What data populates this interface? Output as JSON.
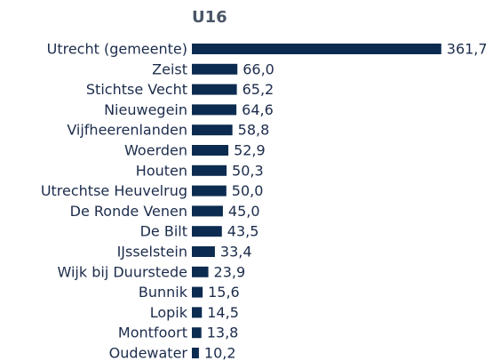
{
  "chart_data": {
    "type": "bar",
    "orientation": "horizontal",
    "title": "U16",
    "categories": [
      "Utrecht (gemeente)",
      "Zeist",
      "Stichtse Vecht",
      "Nieuwegein",
      "Vijfheerenlanden",
      "Woerden",
      "Houten",
      "Utrechtse Heuvelrug",
      "De Ronde Venen",
      "De Bilt",
      "IJsselstein",
      "Wijk bij Duurstede",
      "Bunnik",
      "Lopik",
      "Montfoort",
      "Oudewater"
    ],
    "values": [
      361.7,
      66.0,
      65.2,
      64.6,
      58.8,
      52.9,
      50.3,
      50.0,
      45.0,
      43.5,
      33.4,
      23.9,
      15.6,
      14.5,
      13.8,
      10.2
    ],
    "value_labels": [
      "361,7",
      "66,0",
      "65,2",
      "64,6",
      "58,8",
      "52,9",
      "50,3",
      "50,0",
      "45,0",
      "43,5",
      "33,4",
      "23,9",
      "15,6",
      "14,5",
      "13,8",
      "10,2"
    ],
    "color": "#0c2b50",
    "xlim": [
      0,
      362
    ]
  }
}
